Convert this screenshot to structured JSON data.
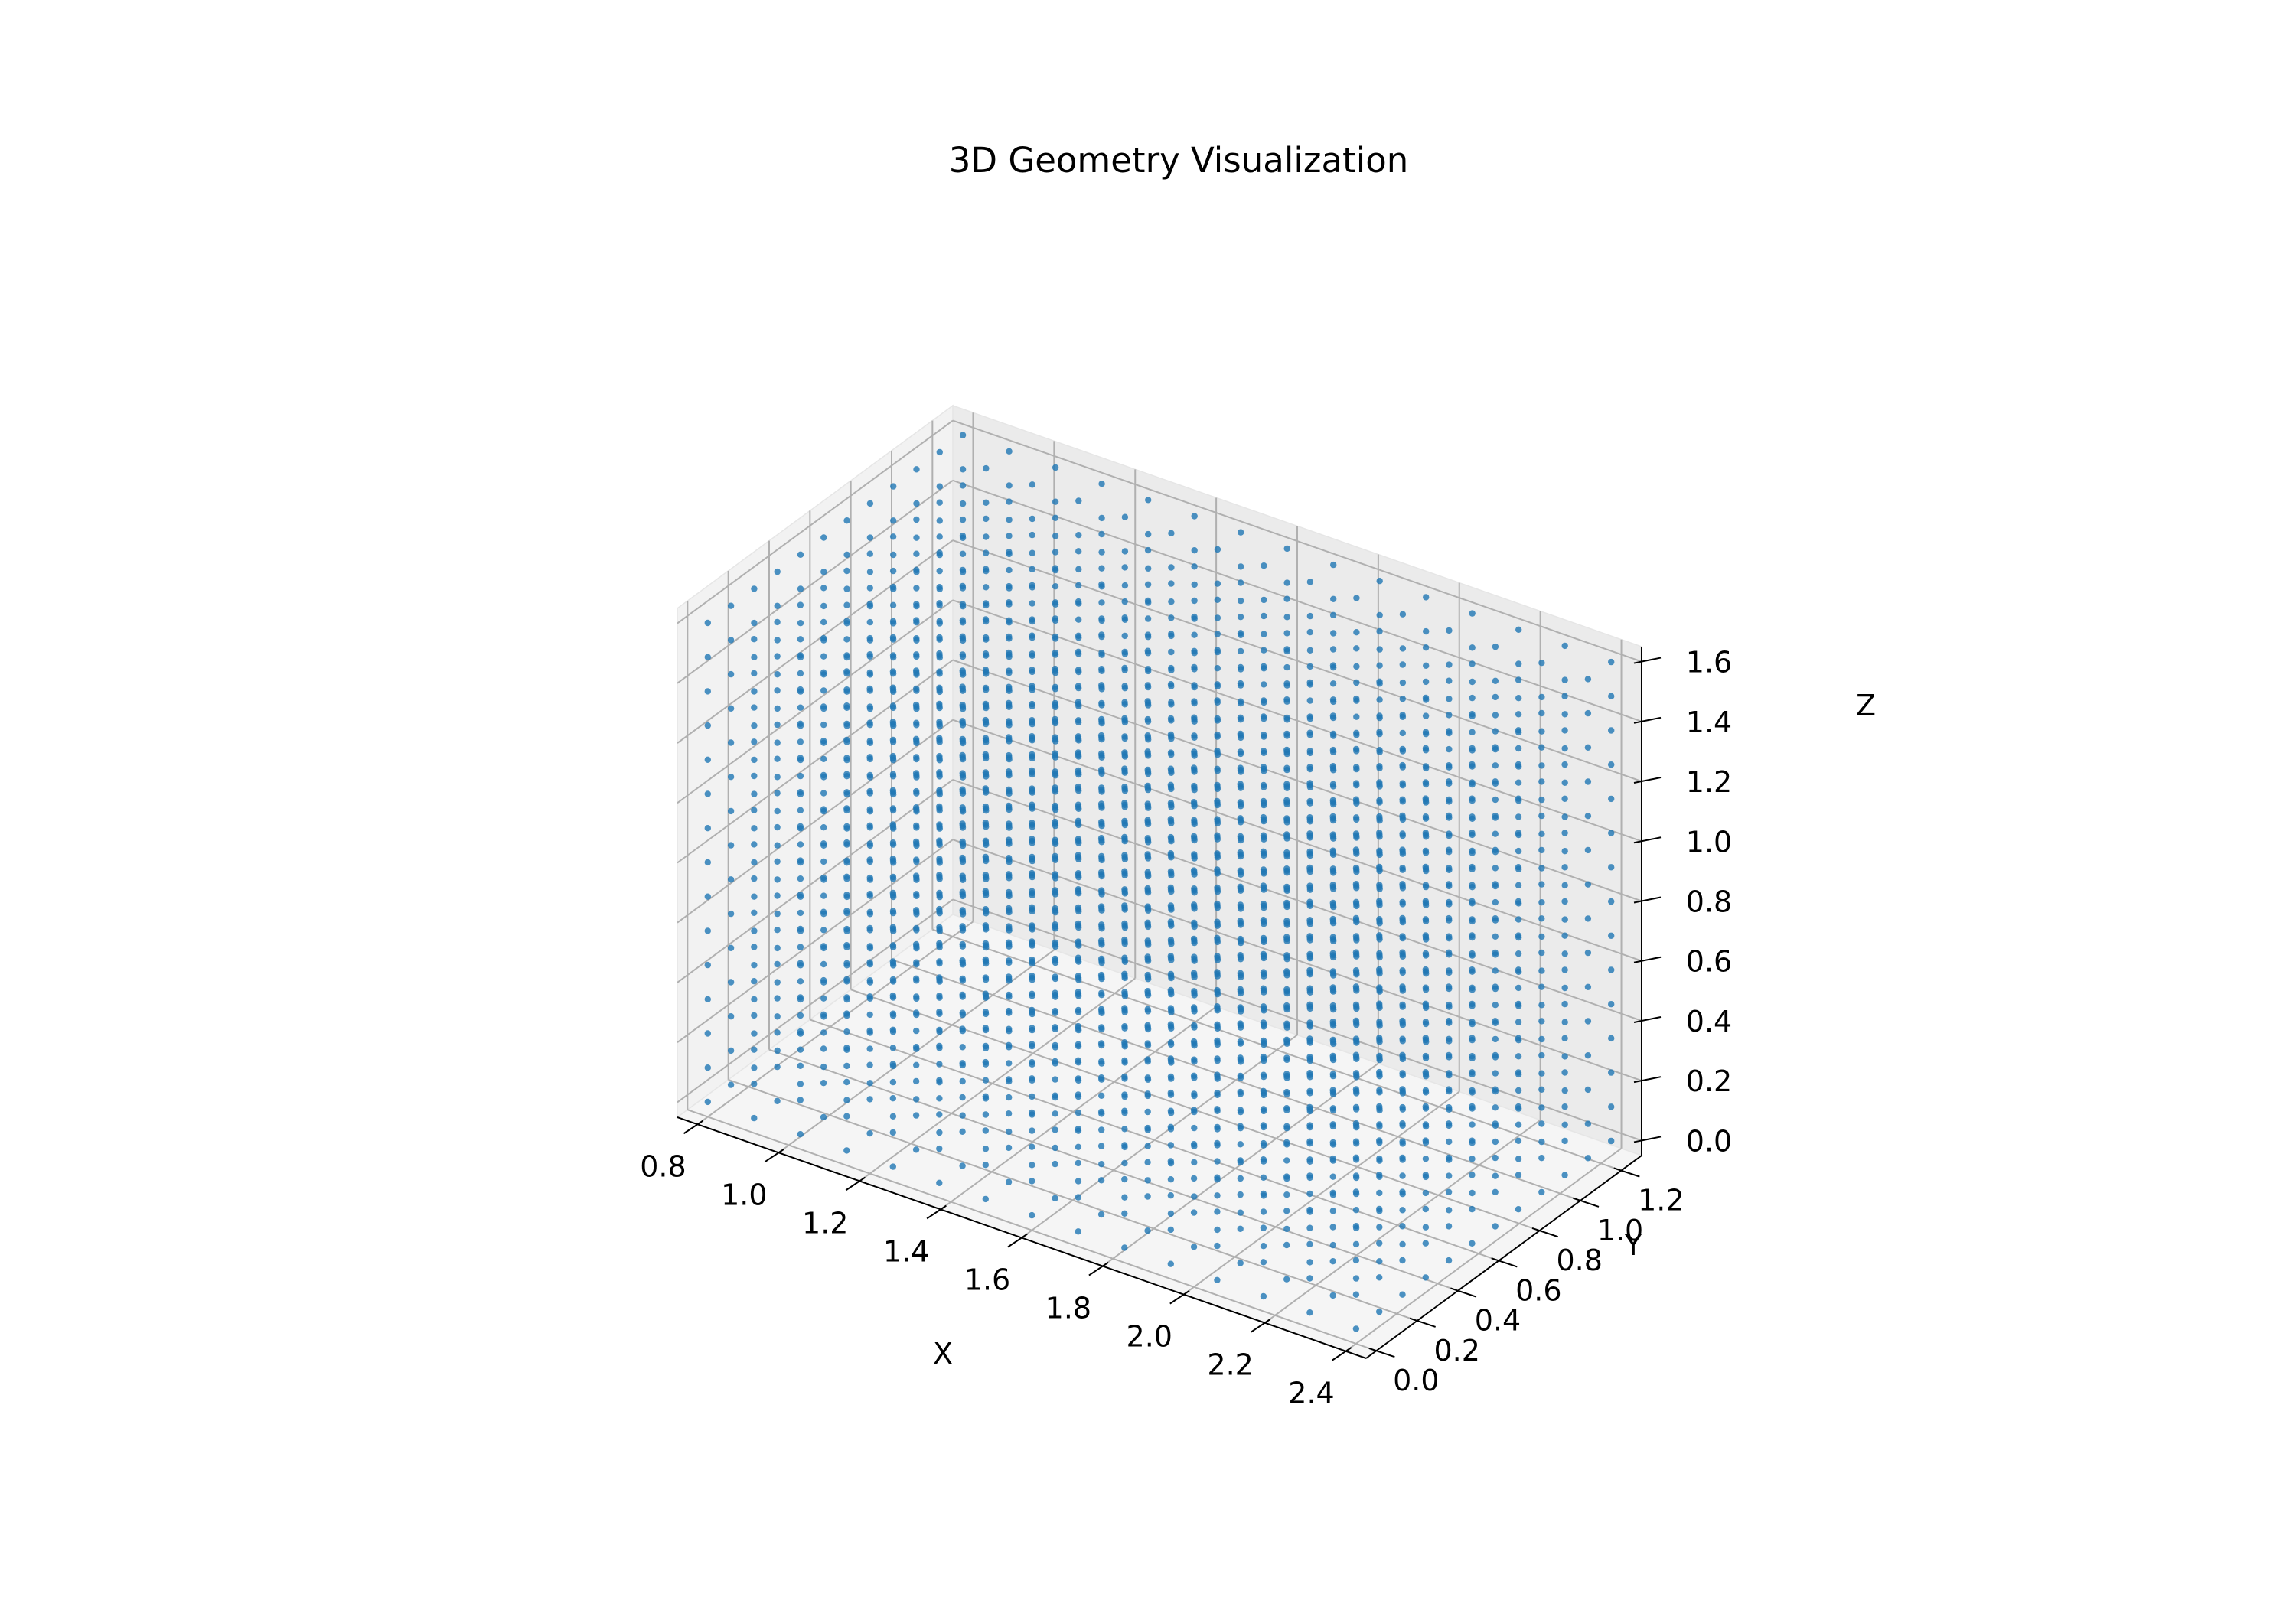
{
  "chart_data": {
    "type": "scatter",
    "projection": "3d",
    "title": "3D Geometry Visualization",
    "xlabel": "X",
    "ylabel": "Y",
    "zlabel": "Z",
    "xlim": [
      0.75,
      2.45
    ],
    "ylim": [
      -0.05,
      1.3
    ],
    "zlim": [
      -0.05,
      1.65
    ],
    "x_ticks": [
      "0.8",
      "1.0",
      "1.2",
      "1.4",
      "1.6",
      "1.8",
      "2.0",
      "2.2",
      "2.4"
    ],
    "y_ticks": [
      "0.0",
      "0.2",
      "0.4",
      "0.6",
      "0.8",
      "1.0",
      "1.2"
    ],
    "z_ticks": [
      "0.0",
      "0.2",
      "0.4",
      "0.6",
      "0.8",
      "1.0",
      "1.2",
      "1.4",
      "1.6"
    ],
    "grid": true,
    "marker_color": "#1f77b4",
    "series": [
      {
        "shape": "filled-box-point-grid",
        "x_range": [
          0.8,
          2.4
        ],
        "y_range": [
          0.0,
          1.25
        ],
        "z_range": [
          0.0,
          1.6
        ]
      }
    ]
  }
}
